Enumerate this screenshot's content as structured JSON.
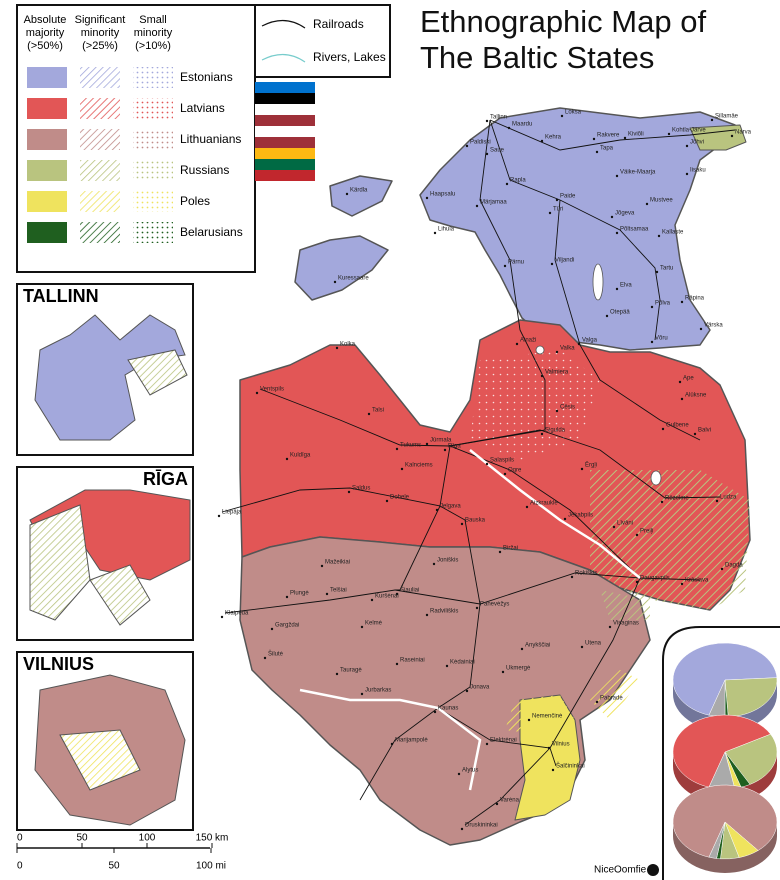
{
  "title": {
    "lines": [
      "Ethnographic Map of",
      "The Baltic States"
    ]
  },
  "legend": {
    "headers": [
      [
        "Absolute",
        "majority",
        "(>50%)"
      ],
      [
        "Significant",
        "minority",
        "(>25%)"
      ],
      [
        "Small",
        "minority",
        "(>10%)"
      ]
    ],
    "groups": [
      {
        "name": "Estonians",
        "color": "#a3a8dc"
      },
      {
        "name": "Latvians",
        "color": "#e25656"
      },
      {
        "name": "Lithuanians",
        "color": "#c08c89"
      },
      {
        "name": "Russians",
        "color": "#b9c47f"
      },
      {
        "name": "Poles",
        "color": "#efe35e"
      },
      {
        "name": "Belarusians",
        "color": "#1f5f1f"
      }
    ]
  },
  "line_legend": [
    "Railroads",
    "Rivers, Lakes"
  ],
  "insets": [
    "TALLINN",
    "RĪGA",
    "VILNIUS"
  ],
  "scale": {
    "km": [
      "0",
      "50",
      "100",
      "150 km"
    ],
    "mi": [
      "0",
      "50",
      "100 mi"
    ]
  },
  "credit": "NiceOomfie",
  "places": [
    "Tallinn",
    "Maardu",
    "Paldiski",
    "Saue",
    "Loksa",
    "Kehra",
    "Rakvere",
    "Kiviõli",
    "Kohtla-Järve",
    "Sillamäe",
    "Narva",
    "Jõhvi",
    "Tapa",
    "Rapla",
    "Paide",
    "Väike-Maarja",
    "Iisaku",
    "Kärdla",
    "Haapsalu",
    "Märjamaa",
    "Türi",
    "Mustvee",
    "Jõgeva",
    "Lihula",
    "Põltsamaa",
    "Kallaste",
    "Pärnu",
    "Viljandi",
    "Tartu",
    "Kuressaare",
    "Elva",
    "Põlva",
    "Räpina",
    "Otepää",
    "Võru",
    "Värska",
    "Valga",
    "Valka",
    "Kolka",
    "Ainaži",
    "Ventspils",
    "Valmiera",
    "Alūksne",
    "Talsi",
    "Cēsis",
    "Gulbene",
    "Ape",
    "Jūrmala",
    "Rīga",
    "Tukums",
    "Sigulda",
    "Balvi",
    "Kuldīga",
    "Kalnciems",
    "Salaspils",
    "Ogre",
    "Ērgļi",
    "Saldus",
    "Dobele",
    "Jelgava",
    "Aizkraukle",
    "Rēzekne",
    "Ludza",
    "Liepāja",
    "Bauska",
    "Jēkabpils",
    "Līvāni",
    "Preiļi",
    "Daugavpils",
    "Krāslava",
    "Dagda",
    "Mažeikiai",
    "Joniškis",
    "Biržai",
    "Telšiai",
    "Šiauliai",
    "Rokiškis",
    "Plungė",
    "Kuršėnai",
    "Panevėžys",
    "Radviliškis",
    "Gargždai",
    "Klaipėda",
    "Kelmė",
    "Anykščiai",
    "Utena",
    "Visaginas",
    "Šilutė",
    "Raseiniai",
    "Kėdainiai",
    "Ukmergė",
    "Tauragė",
    "Jonava",
    "Pabradė",
    "Jurbarkas",
    "Kaunas",
    "Nemenčinė",
    "Elektrėnai",
    "Vilnius",
    "Šalčininkai",
    "Marijampolė",
    "Alytus",
    "Varėna",
    "Druskininkai"
  ],
  "pie_charts": [
    {
      "values": [
        69,
        25,
        1,
        5
      ],
      "colors": [
        "#a3a8dc",
        "#b9c47f",
        "#1f5f1f",
        "#aaaaaa"
      ]
    },
    {
      "values": [
        62,
        25,
        3,
        2,
        8
      ],
      "colors": [
        "#e25656",
        "#b9c47f",
        "#1f5f1f",
        "#efe35e",
        "#aaaaaa"
      ]
    },
    {
      "values": [
        84,
        6.6,
        5.8,
        1.2,
        2.4
      ],
      "colors": [
        "#c08c89",
        "#efe35e",
        "#b9c47f",
        "#1f5f1f",
        "#aaaaaa"
      ]
    }
  ]
}
